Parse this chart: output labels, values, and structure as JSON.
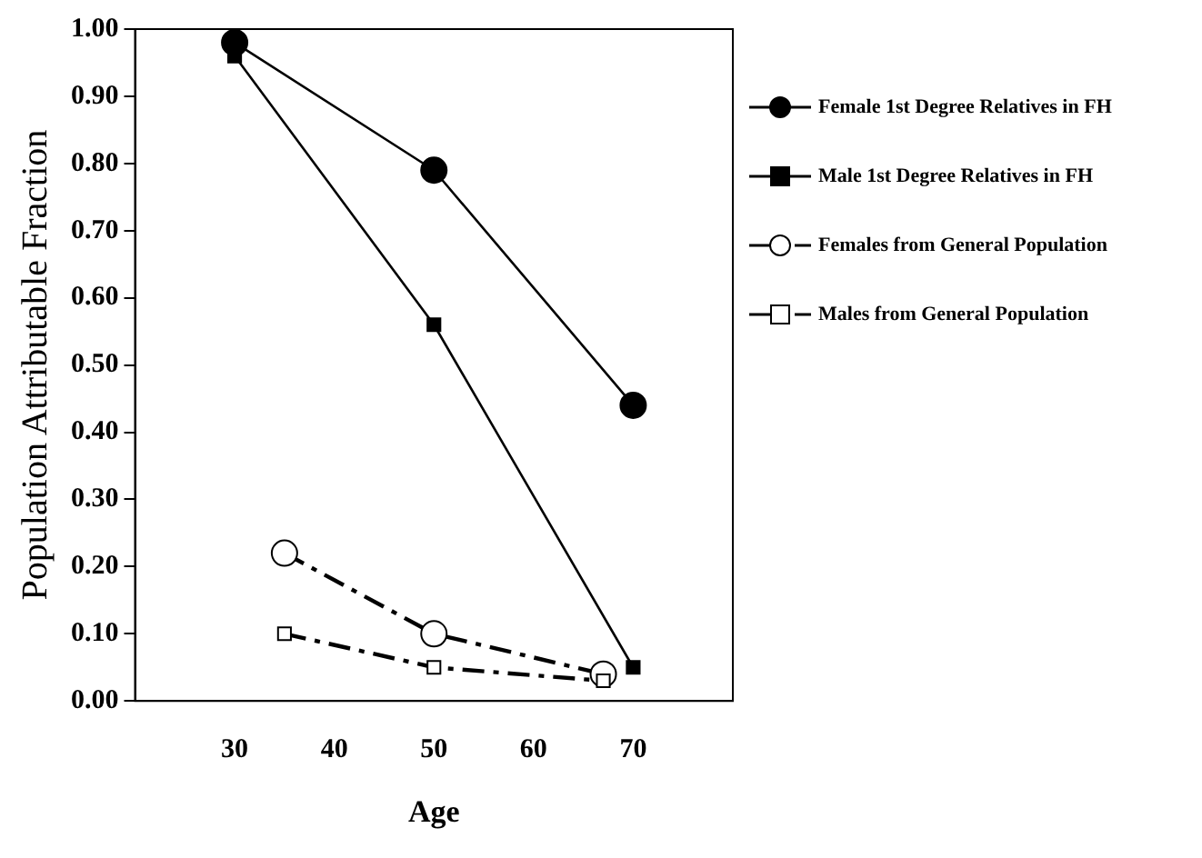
{
  "chart_data": {
    "type": "line",
    "xlabel": "Age",
    "ylabel": "Population Attributable Fraction",
    "xlim": [
      20,
      80
    ],
    "xticks": [
      {
        "value": 20,
        "label": null
      },
      30,
      40,
      50,
      60,
      70,
      {
        "value": 80,
        "label": null
      }
    ],
    "ylim": [
      0,
      1
    ],
    "yticks": [
      {
        "value": 0,
        "label": "0.00"
      },
      {
        "value": 0.1,
        "label": "0.10"
      },
      {
        "value": 0.2,
        "label": "0.20"
      },
      {
        "value": 0.3,
        "label": "0.30"
      },
      {
        "value": 0.4,
        "label": "0.40"
      },
      {
        "value": 0.5,
        "label": "0.50"
      },
      {
        "value": 0.6,
        "label": "0.60"
      },
      {
        "value": 0.7,
        "label": "0.70"
      },
      {
        "value": 0.8,
        "label": "0.80"
      },
      {
        "value": 0.9,
        "label": "0.90"
      },
      {
        "value": 1,
        "label": "1.00"
      }
    ],
    "grid": false,
    "legend": "right",
    "series": [
      {
        "name": "Female 1st Degree Relatives in FH",
        "color": "#000000",
        "x": [
          30,
          50,
          70
        ],
        "values": [
          0.98,
          0.79,
          0.44
        ],
        "marker": "circle",
        "line_style": "solid"
      },
      {
        "name": "Male 1st Degree Relatives in FH",
        "color": "#000000",
        "x": [
          30,
          50,
          70
        ],
        "values": [
          0.96,
          0.56,
          0.05
        ],
        "marker": "square",
        "line_style": "solid"
      },
      {
        "name": "Females from General Population",
        "color": "#000000",
        "x": [
          35,
          50,
          67
        ],
        "values": [
          0.22,
          0.1,
          0.04
        ],
        "colors": [
          "#ffffff",
          "#ffffff",
          "#ffffff"
        ],
        "marker": "circle",
        "line_style": "dashed"
      },
      {
        "name": "Males from General Population",
        "color": "#000000",
        "x": [
          35,
          50,
          67
        ],
        "values": [
          0.1,
          0.05,
          0.03
        ],
        "colors": [
          "#ffffff",
          "#ffffff",
          "#ffffff"
        ],
        "marker": "square",
        "line_style": "dashed"
      }
    ]
  }
}
